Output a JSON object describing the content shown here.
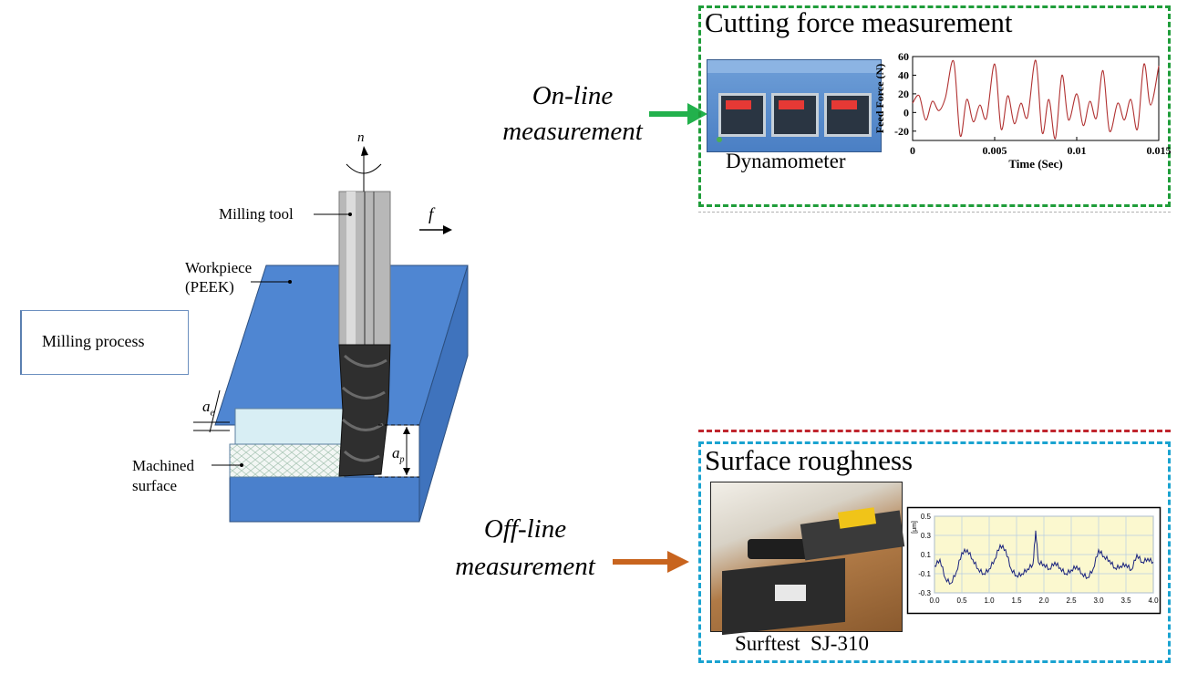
{
  "milling": {
    "process_box": "Milling process",
    "labels": {
      "tool": "Milling tool",
      "workpiece_line1": "Workpiece",
      "workpiece_line2": "(PEEK)",
      "machined_line1": "Machined",
      "machined_line2": "surface",
      "rotation": "n",
      "feed": "f",
      "ae": "a",
      "ae_sub": "e",
      "ap": "a",
      "ap_sub": "p"
    },
    "colors": {
      "workpiece_top": "#4f86d2",
      "workpiece_side": "#3f73bd",
      "chip_layer": "#d8eef4",
      "machined_layer": "#eef2f3",
      "tool_shank": "#b8b8b8",
      "tool_cutter": "#2e2e2e"
    }
  },
  "online": {
    "caption_line1": "On-line",
    "caption_line2": "measurement",
    "arrow_color": "#22b14c",
    "panel": {
      "title": "Cutting force measurement",
      "border_color": "#1f9d3a",
      "device_label": "Dynamometer"
    }
  },
  "offline": {
    "caption_line1": "Off-line",
    "caption_line2": "measurement",
    "arrow_color": "#c8641e",
    "panel": {
      "title": "Surface roughness",
      "border_color": "#1aa3d0",
      "device_label": "Surftest  SJ-310"
    }
  },
  "separator_color": "#c0262e",
  "chart_data": [
    {
      "type": "line",
      "title": "",
      "xlabel": "Time (Sec)",
      "ylabel": "Feed Force (N)",
      "xlim": [
        0,
        0.015
      ],
      "ylim": [
        -30,
        60
      ],
      "xticks": [
        "0",
        "0.005",
        "0.01",
        "0.015"
      ],
      "yticks": [
        "60",
        "40",
        "20",
        "0",
        "-20"
      ],
      "series": [
        {
          "color": "#b03030",
          "x": [
            0,
            0.0004,
            0.0008,
            0.0012,
            0.0016,
            0.002,
            0.0025,
            0.0029,
            0.0033,
            0.0037,
            0.0041,
            0.0045,
            0.005,
            0.0054,
            0.0058,
            0.0062,
            0.0066,
            0.007,
            0.0075,
            0.0079,
            0.0083,
            0.0087,
            0.0091,
            0.0095,
            0.01,
            0.0104,
            0.0108,
            0.0112,
            0.0116,
            0.012,
            0.0125,
            0.0129,
            0.0133,
            0.0137,
            0.0141,
            0.0145,
            0.015
          ],
          "y": [
            10,
            18,
            -8,
            12,
            2,
            16,
            55,
            -25,
            14,
            -10,
            8,
            -6,
            52,
            -18,
            18,
            -12,
            10,
            -5,
            56,
            -22,
            14,
            -28,
            40,
            -8,
            20,
            -14,
            12,
            -6,
            45,
            -20,
            10,
            -8,
            14,
            -18,
            52,
            8,
            50
          ]
        }
      ]
    },
    {
      "type": "line",
      "title": "",
      "xlabel": "",
      "ylabel": "[μm]",
      "xlim": [
        0,
        4
      ],
      "ylim": [
        -0.3,
        0.5
      ],
      "xticks": [
        "0.0",
        "0.5",
        "1.0",
        "1.5",
        "2.0",
        "2.5",
        "3.0",
        "3.5",
        "4.0"
      ],
      "yticks": [
        "0.5",
        "0.3",
        "0.1",
        "-0.1",
        "-0.3"
      ],
      "grid": true,
      "series": [
        {
          "color": "#1a237e",
          "x": [
            0,
            0.1,
            0.2,
            0.3,
            0.4,
            0.5,
            0.6,
            0.7,
            0.8,
            0.9,
            1.0,
            1.1,
            1.2,
            1.3,
            1.4,
            1.5,
            1.6,
            1.7,
            1.8,
            1.85,
            1.9,
            2.0,
            2.1,
            2.2,
            2.3,
            2.4,
            2.5,
            2.6,
            2.7,
            2.8,
            2.9,
            3.0,
            3.1,
            3.2,
            3.3,
            3.4,
            3.5,
            3.6,
            3.7,
            3.8,
            3.9,
            4.0
          ],
          "y": [
            -0.02,
            0.05,
            -0.15,
            -0.2,
            -0.08,
            0.12,
            0.15,
            0.05,
            -0.05,
            -0.1,
            -0.05,
            0.05,
            0.2,
            0.15,
            -0.05,
            -0.12,
            -0.1,
            -0.05,
            0.0,
            0.35,
            0.02,
            0.0,
            -0.05,
            0.02,
            -0.04,
            -0.1,
            -0.06,
            -0.02,
            -0.1,
            -0.14,
            -0.05,
            0.15,
            0.08,
            0.04,
            -0.04,
            -0.02,
            0.0,
            -0.06,
            0.1,
            0.02,
            0.06,
            0.02
          ]
        }
      ]
    }
  ]
}
